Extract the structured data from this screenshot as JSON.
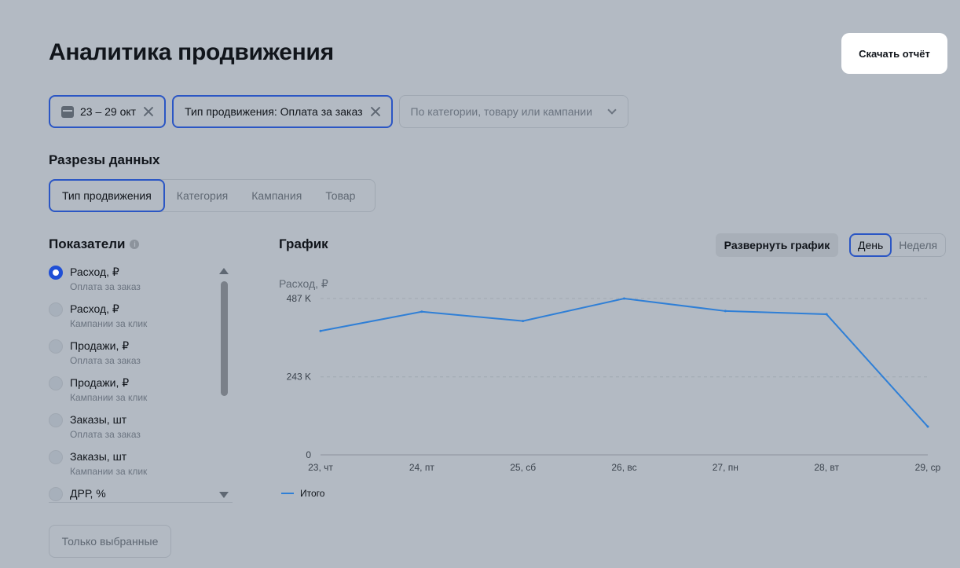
{
  "header": {
    "title": "Аналитика продвижения",
    "download_label": "Скачать отчёт"
  },
  "filters": {
    "date_label": "23 – 29 окт",
    "promo_type_label": "Тип продвижения: Оплата за заказ",
    "search_placeholder": "По категории, товару или кампании"
  },
  "slices": {
    "title": "Разрезы данных",
    "tabs": [
      "Тип продвижения",
      "Категория",
      "Кампания",
      "Товар"
    ],
    "active_tab": "Тип продвижения"
  },
  "metrics": {
    "title": "Показатели",
    "items": [
      {
        "label": "Расход, ₽",
        "sub": "Оплата за заказ",
        "selected": true
      },
      {
        "label": "Расход, ₽",
        "sub": "Кампании за клик",
        "selected": false
      },
      {
        "label": "Продажи, ₽",
        "sub": "Оплата за заказ",
        "selected": false
      },
      {
        "label": "Продажи, ₽",
        "sub": "Кампании за клик",
        "selected": false
      },
      {
        "label": "Заказы, шт",
        "sub": "Оплата за заказ",
        "selected": false
      },
      {
        "label": "Заказы, шт",
        "sub": "Кампании за клик",
        "selected": false
      },
      {
        "label": "ДРР, %",
        "sub": "",
        "selected": false
      }
    ],
    "only_selected_label": "Только выбранные"
  },
  "graph": {
    "title": "График",
    "expand_label": "Развернуть график",
    "period_options": [
      "День",
      "Неделя"
    ],
    "active_period": "День"
  },
  "colors": {
    "accent": "#2b56c4",
    "line": "#2f7fd6",
    "background": "#b3bac3"
  },
  "chart_data": {
    "type": "line",
    "ylabel": "Расход, ₽",
    "categories": [
      "23, чт",
      "24, пт",
      "25, сб",
      "26, вс",
      "27, пн",
      "28, вт",
      "29, ср"
    ],
    "y_ticks": [
      {
        "value": 0,
        "label": "0"
      },
      {
        "value": 243,
        "label": "243 K"
      },
      {
        "value": 487,
        "label": "487 K"
      }
    ],
    "ylim": [
      0,
      487
    ],
    "series": [
      {
        "name": "Итого",
        "values": [
          386,
          446,
          417,
          487,
          448,
          438,
          88
        ]
      }
    ],
    "grid": true,
    "legend": "bottom-left"
  }
}
